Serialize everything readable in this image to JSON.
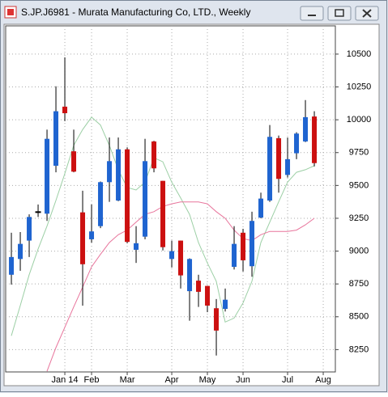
{
  "chart_data": {
    "type": "candlestick",
    "title": "S.JP.J6981 - Murata Manufacturing Co, LTD., Weekly",
    "x": [
      0,
      1,
      2,
      3,
      4,
      5,
      6,
      7,
      8,
      9,
      10,
      11,
      12,
      13,
      14,
      15,
      16,
      17,
      18,
      19,
      20,
      21,
      22,
      23,
      24,
      25,
      26,
      27,
      28,
      29,
      30,
      31,
      32,
      33,
      34
    ],
    "open": [
      8820,
      8940,
      9080,
      9295,
      9285,
      9650,
      10100,
      9760,
      9295,
      9090,
      9190,
      9525,
      9385,
      9775,
      9010,
      9110,
      9835,
      9535,
      8940,
      9080,
      8695,
      8775,
      8735,
      8565,
      8560,
      8880,
      9140,
      8885,
      9255,
      9385,
      9860,
      9580,
      9745,
      9835,
      10025
    ],
    "high": [
      9140,
      9145,
      9280,
      9355,
      9925,
      10255,
      10475,
      9925,
      9460,
      9355,
      9530,
      9865,
      9865,
      9790,
      9190,
      9855,
      9840,
      9535,
      9080,
      9080,
      8945,
      8820,
      8735,
      8635,
      8715,
      9190,
      9170,
      9300,
      9445,
      9960,
      9880,
      9865,
      9905,
      10150,
      10065
    ],
    "low": [
      8745,
      8850,
      8955,
      9260,
      9230,
      9600,
      9990,
      9600,
      8585,
      9065,
      9175,
      9375,
      9380,
      9060,
      8910,
      9090,
      9600,
      9005,
      8875,
      8715,
      8470,
      8575,
      8535,
      8205,
      8540,
      8860,
      8845,
      8805,
      9250,
      9375,
      9445,
      9560,
      9700,
      9830,
      9645
    ],
    "close": [
      8955,
      9055,
      9260,
      9300,
      9855,
      10065,
      10050,
      9605,
      8900,
      9150,
      9525,
      9685,
      9775,
      9070,
      9060,
      9685,
      9630,
      9030,
      9000,
      8815,
      8940,
      8690,
      8585,
      8395,
      8630,
      9055,
      8930,
      9230,
      9400,
      9870,
      9550,
      9700,
      9895,
      10020,
      9670
    ],
    "up_color": "#1f64d0",
    "down_color": "#cc1010",
    "series": [
      {
        "color": "#9ccfa5",
        "values": [
          8355,
          8585,
          8820,
          9015,
          9190,
          9385,
          9590,
          9805,
          9925,
          10020,
          9960,
          9805,
          9620,
          9485,
          9465,
          9525,
          9710,
          9680,
          9525,
          9405,
          9280,
          9065,
          8910,
          8770,
          8460,
          8490,
          8605,
          8770,
          9065,
          9220,
          9375,
          9525,
          9600,
          9620,
          9650
        ]
      },
      {
        "color": "#e8759c",
        "values": [
          null,
          null,
          null,
          null,
          8085,
          8265,
          8420,
          8575,
          8725,
          8880,
          8975,
          9065,
          9125,
          9160,
          9220,
          9280,
          9300,
          9340,
          9360,
          9375,
          9375,
          9375,
          9360,
          9300,
          9250,
          9160,
          9095,
          9080,
          9125,
          9150,
          9150,
          9150,
          9160,
          9200,
          9250
        ]
      }
    ],
    "xlim": [
      -0.64,
      36.36
    ],
    "xticks": [
      {
        "value": 6,
        "label": "Jan 14"
      },
      {
        "value": 9,
        "label": "Feb"
      },
      {
        "value": 13,
        "label": "Mar"
      },
      {
        "value": 18,
        "label": "Apr"
      },
      {
        "value": 22,
        "label": "May"
      },
      {
        "value": 26,
        "label": "Jun"
      },
      {
        "value": 31,
        "label": "Jul"
      },
      {
        "value": 35,
        "label": "Aug"
      }
    ],
    "ylim": [
      8080,
      10715
    ],
    "yticks": [
      {
        "value": 8250,
        "label": "8250"
      },
      {
        "value": 8500,
        "label": "8500"
      },
      {
        "value": 8750,
        "label": "8750"
      },
      {
        "value": 9000,
        "label": "9000"
      },
      {
        "value": 9250,
        "label": "9250"
      },
      {
        "value": 9500,
        "label": "9500"
      },
      {
        "value": 9750,
        "label": "9750"
      },
      {
        "value": 10000,
        "label": "10000"
      },
      {
        "value": 10250,
        "label": "10250"
      },
      {
        "value": 10500,
        "label": "10500"
      }
    ],
    "grid": true
  }
}
